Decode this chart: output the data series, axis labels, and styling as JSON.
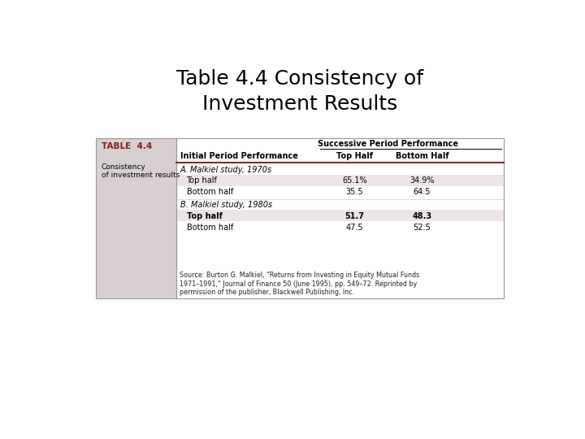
{
  "title": "Table 4.4 Consistency of\nInvestment Results",
  "title_fontsize": 18,
  "background_color": "#ffffff",
  "table_bg": "#d8d0d0",
  "table_label": "TABLE  4.4",
  "table_label_color": "#8B1A1A",
  "table_sublabel": "Consistency\nof investment results",
  "col_header_1": "Initial Period Performance",
  "col_header_2": "Top Half",
  "col_header_3": "Bottom Half",
  "span_header": "Successive Period Performance",
  "section_a": "A. Malkiel study, 1970s",
  "section_b": "B. Malkiel study, 1980s",
  "row_labels": [
    "Top half",
    "Bottom half",
    "Top half",
    "Bottom half"
  ],
  "col2_vals": [
    "65.1%",
    "35.5",
    "51.7",
    "47.5"
  ],
  "col3_vals": [
    "34.9%",
    "64.5",
    "48.3",
    "52.5"
  ],
  "source_text": "Source: Burton G. Malkiel, “Returns from Investing in Equity Mutual Funds\n1971–1991,” Journal of Finance 50 (June 1995), pp. 549–72. Reprinted by\npermission of the publisher, Blackwell Publishing, Inc.",
  "row_shade_color": "#ede5e5",
  "header_line_color": "#8B1A1A",
  "white_bg": "#ffffff"
}
